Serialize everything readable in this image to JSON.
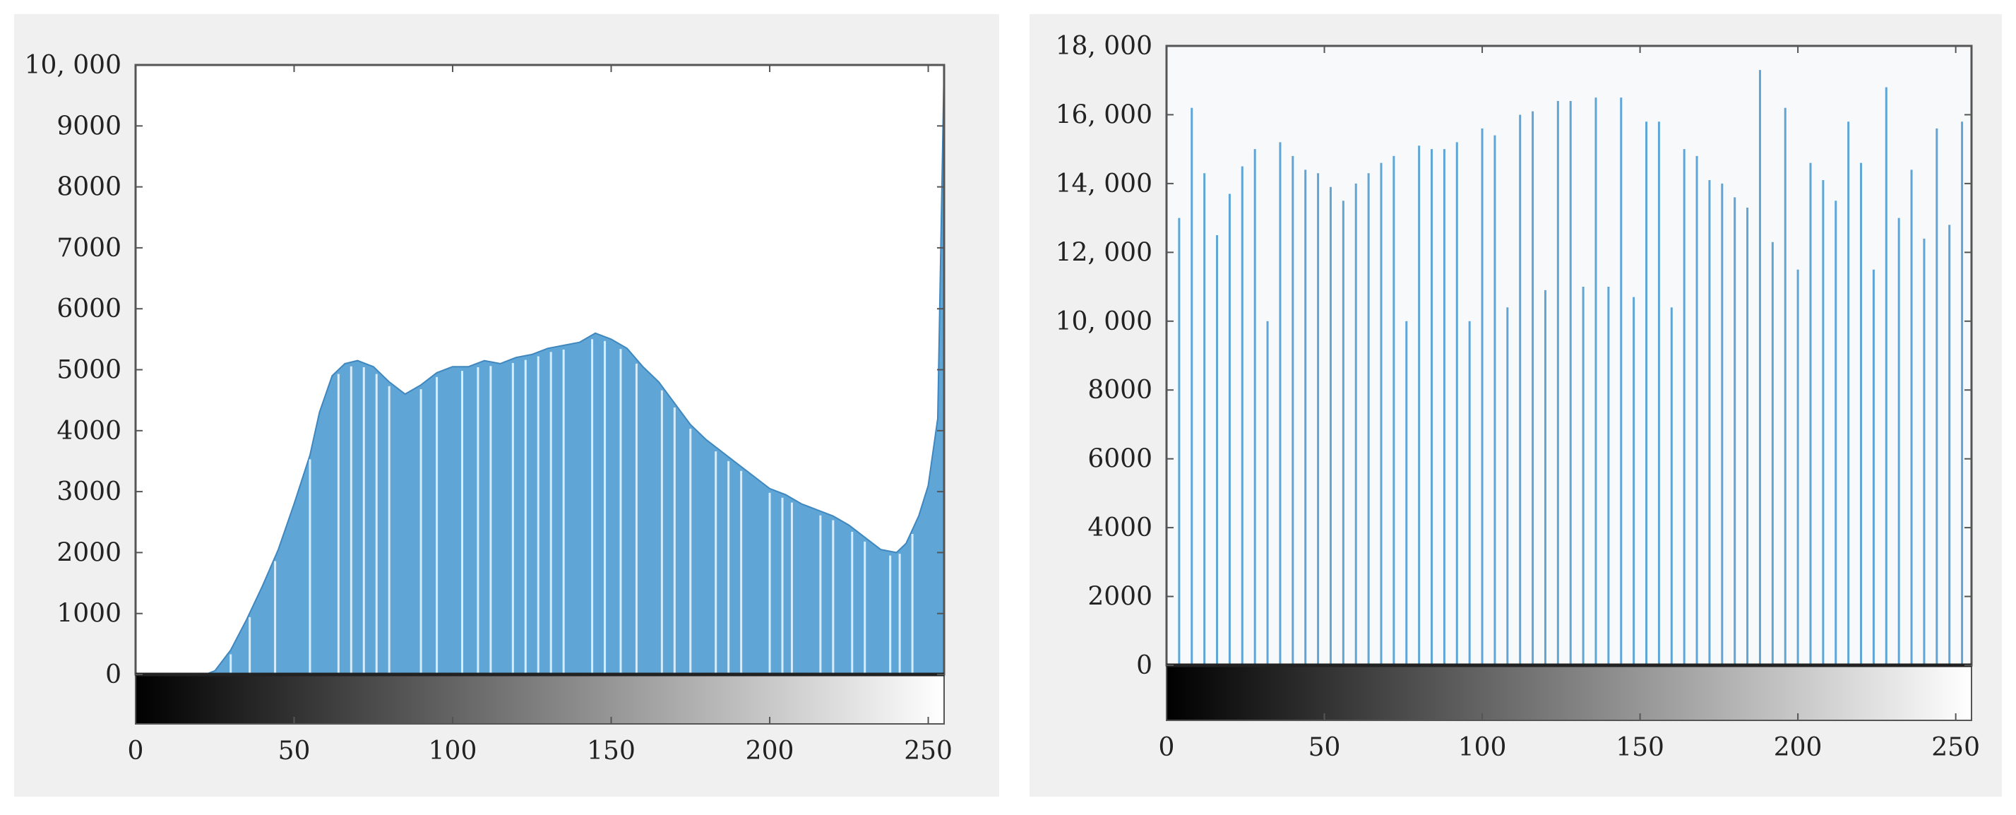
{
  "chart_data": [
    {
      "type": "bar",
      "title": "",
      "xlabel": "",
      "ylabel": "",
      "xlim": [
        0,
        255
      ],
      "ylim": [
        0,
        10000
      ],
      "x_ticks": [
        0,
        50,
        100,
        150,
        200,
        250
      ],
      "y_ticks": [
        0,
        1000,
        2000,
        3000,
        4000,
        5000,
        6000,
        7000,
        8000,
        9000,
        10000
      ],
      "y_tick_labels": [
        "0",
        "1000",
        "2000",
        "3000",
        "4000",
        "5000",
        "6000",
        "7000",
        "8000",
        "9000",
        "10, 000"
      ],
      "x_tick_labels": [
        "0",
        "50",
        "100",
        "150",
        "200",
        "250"
      ],
      "grid": false,
      "bar_color": "#5fa5d6",
      "colorbar": "grayscale",
      "envelope": [
        {
          "x": 0,
          "y": 0
        },
        {
          "x": 22,
          "y": 0
        },
        {
          "x": 25,
          "y": 60
        },
        {
          "x": 30,
          "y": 400
        },
        {
          "x": 35,
          "y": 900
        },
        {
          "x": 40,
          "y": 1450
        },
        {
          "x": 45,
          "y": 2050
        },
        {
          "x": 50,
          "y": 2800
        },
        {
          "x": 55,
          "y": 3600
        },
        {
          "x": 58,
          "y": 4300
        },
        {
          "x": 62,
          "y": 4900
        },
        {
          "x": 66,
          "y": 5100
        },
        {
          "x": 70,
          "y": 5150
        },
        {
          "x": 75,
          "y": 5050
        },
        {
          "x": 80,
          "y": 4800
        },
        {
          "x": 85,
          "y": 4600
        },
        {
          "x": 90,
          "y": 4750
        },
        {
          "x": 95,
          "y": 4950
        },
        {
          "x": 100,
          "y": 5050
        },
        {
          "x": 105,
          "y": 5050
        },
        {
          "x": 110,
          "y": 5150
        },
        {
          "x": 115,
          "y": 5100
        },
        {
          "x": 120,
          "y": 5200
        },
        {
          "x": 125,
          "y": 5250
        },
        {
          "x": 130,
          "y": 5350
        },
        {
          "x": 135,
          "y": 5400
        },
        {
          "x": 140,
          "y": 5450
        },
        {
          "x": 145,
          "y": 5600
        },
        {
          "x": 150,
          "y": 5500
        },
        {
          "x": 155,
          "y": 5350
        },
        {
          "x": 160,
          "y": 5050
        },
        {
          "x": 165,
          "y": 4800
        },
        {
          "x": 170,
          "y": 4450
        },
        {
          "x": 175,
          "y": 4100
        },
        {
          "x": 180,
          "y": 3850
        },
        {
          "x": 185,
          "y": 3650
        },
        {
          "x": 190,
          "y": 3450
        },
        {
          "x": 195,
          "y": 3250
        },
        {
          "x": 200,
          "y": 3050
        },
        {
          "x": 205,
          "y": 2950
        },
        {
          "x": 210,
          "y": 2800
        },
        {
          "x": 215,
          "y": 2700
        },
        {
          "x": 220,
          "y": 2600
        },
        {
          "x": 225,
          "y": 2450
        },
        {
          "x": 230,
          "y": 2250
        },
        {
          "x": 235,
          "y": 2050
        },
        {
          "x": 240,
          "y": 2000
        },
        {
          "x": 243,
          "y": 2150
        },
        {
          "x": 247,
          "y": 2600
        },
        {
          "x": 250,
          "y": 3100
        },
        {
          "x": 253,
          "y": 4200
        },
        {
          "x": 255,
          "y": 10000
        }
      ],
      "gap_x": [
        30,
        36,
        44,
        55,
        64,
        68,
        72,
        76,
        80,
        90,
        95,
        103,
        108,
        112,
        119,
        123,
        127,
        131,
        135,
        144,
        148,
        153,
        158,
        166,
        170,
        175,
        183,
        187,
        191,
        200,
        204,
        207,
        216,
        220,
        226,
        230,
        238,
        241,
        245
      ]
    },
    {
      "type": "bar",
      "title": "",
      "xlabel": "",
      "ylabel": "",
      "xlim": [
        0,
        255
      ],
      "ylim": [
        0,
        18000
      ],
      "x_ticks": [
        0,
        50,
        100,
        150,
        200,
        250
      ],
      "y_ticks": [
        0,
        2000,
        4000,
        6000,
        8000,
        10000,
        12000,
        14000,
        16000,
        18000
      ],
      "y_tick_labels": [
        "0",
        "2000",
        "4000",
        "6000",
        "8000",
        "10, 000",
        "12, 000",
        "14, 000",
        "16, 000",
        "18, 000"
      ],
      "x_tick_labels": [
        "0",
        "50",
        "100",
        "150",
        "200",
        "250"
      ],
      "grid": false,
      "bar_color": "#5fa5d6",
      "colorbar": "grayscale",
      "spikes": [
        {
          "x": 0,
          "y": 13500
        },
        {
          "x": 4,
          "y": 13000
        },
        {
          "x": 8,
          "y": 16200
        },
        {
          "x": 12,
          "y": 14300
        },
        {
          "x": 16,
          "y": 12500
        },
        {
          "x": 20,
          "y": 13700
        },
        {
          "x": 24,
          "y": 14500
        },
        {
          "x": 28,
          "y": 15000
        },
        {
          "x": 32,
          "y": 10000
        },
        {
          "x": 36,
          "y": 15200
        },
        {
          "x": 40,
          "y": 14800
        },
        {
          "x": 44,
          "y": 14400
        },
        {
          "x": 48,
          "y": 14300
        },
        {
          "x": 52,
          "y": 13900
        },
        {
          "x": 56,
          "y": 13500
        },
        {
          "x": 60,
          "y": 14000
        },
        {
          "x": 64,
          "y": 14300
        },
        {
          "x": 68,
          "y": 14600
        },
        {
          "x": 72,
          "y": 14800
        },
        {
          "x": 76,
          "y": 10000
        },
        {
          "x": 80,
          "y": 15100
        },
        {
          "x": 84,
          "y": 15000
        },
        {
          "x": 88,
          "y": 15000
        },
        {
          "x": 92,
          "y": 15200
        },
        {
          "x": 96,
          "y": 10000
        },
        {
          "x": 100,
          "y": 15600
        },
        {
          "x": 104,
          "y": 15400
        },
        {
          "x": 108,
          "y": 10400
        },
        {
          "x": 112,
          "y": 16000
        },
        {
          "x": 116,
          "y": 16100
        },
        {
          "x": 120,
          "y": 10900
        },
        {
          "x": 124,
          "y": 16400
        },
        {
          "x": 128,
          "y": 16400
        },
        {
          "x": 132,
          "y": 11000
        },
        {
          "x": 136,
          "y": 16500
        },
        {
          "x": 140,
          "y": 11000
        },
        {
          "x": 144,
          "y": 16500
        },
        {
          "x": 148,
          "y": 10700
        },
        {
          "x": 152,
          "y": 15800
        },
        {
          "x": 156,
          "y": 15800
        },
        {
          "x": 160,
          "y": 10400
        },
        {
          "x": 164,
          "y": 15000
        },
        {
          "x": 168,
          "y": 14800
        },
        {
          "x": 172,
          "y": 14100
        },
        {
          "x": 176,
          "y": 14000
        },
        {
          "x": 180,
          "y": 13600
        },
        {
          "x": 184,
          "y": 13300
        },
        {
          "x": 188,
          "y": 17300
        },
        {
          "x": 192,
          "y": 12300
        },
        {
          "x": 196,
          "y": 16200
        },
        {
          "x": 200,
          "y": 11500
        },
        {
          "x": 204,
          "y": 14600
        },
        {
          "x": 208,
          "y": 14100
        },
        {
          "x": 212,
          "y": 13500
        },
        {
          "x": 216,
          "y": 15800
        },
        {
          "x": 220,
          "y": 14600
        },
        {
          "x": 224,
          "y": 11500
        },
        {
          "x": 228,
          "y": 16800
        },
        {
          "x": 232,
          "y": 13000
        },
        {
          "x": 236,
          "y": 14400
        },
        {
          "x": 240,
          "y": 12400
        },
        {
          "x": 244,
          "y": 15600
        },
        {
          "x": 248,
          "y": 12800
        },
        {
          "x": 252,
          "y": 15800
        }
      ]
    }
  ]
}
